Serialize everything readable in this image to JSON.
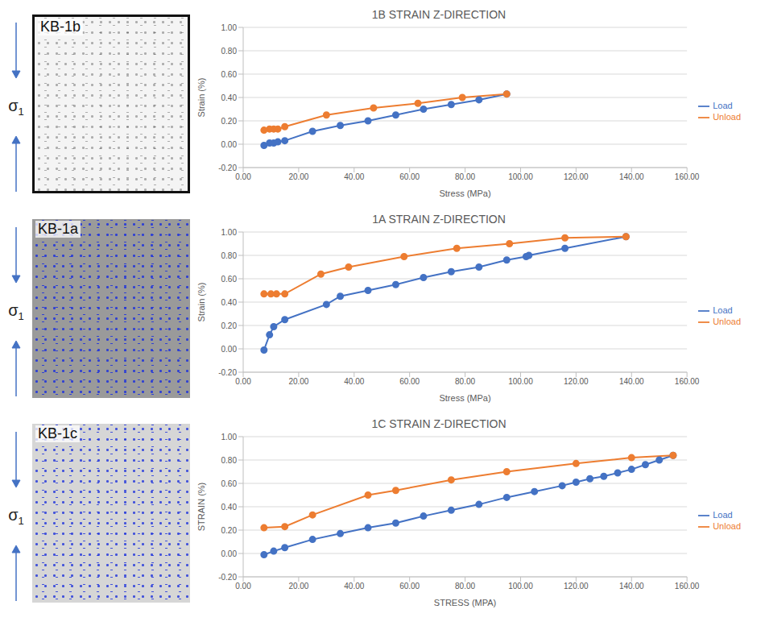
{
  "chart_data": [
    {
      "type": "line",
      "title": "1B STRAIN Z-DIRECTION",
      "x_label": "Stress (MPa)",
      "y_label": "Strain (%)",
      "annotations": [
        "KB-1b",
        "σ1"
      ],
      "xlim": [
        0,
        160
      ],
      "xticks": [
        {
          "value": 0,
          "label": "0.00"
        },
        {
          "value": 20,
          "label": "20.00"
        },
        {
          "value": 40,
          "label": "40.00"
        },
        {
          "value": 60,
          "label": "60.00"
        },
        {
          "value": 80,
          "label": "80.00"
        },
        {
          "value": 100,
          "label": "100.00"
        },
        {
          "value": 120,
          "label": "120.00"
        },
        {
          "value": 140,
          "label": "140.00"
        },
        {
          "value": 160,
          "label": "160.00"
        }
      ],
      "ylim": [
        -0.2,
        1.0
      ],
      "yticks": [
        {
          "value": -0.2,
          "label": "-0.20"
        },
        {
          "value": 0,
          "label": "0.00"
        },
        {
          "value": 0.2,
          "label": "0.20"
        },
        {
          "value": 0.4,
          "label": "0.40"
        },
        {
          "value": 0.6,
          "label": "0.60"
        },
        {
          "value": 0.8,
          "label": "0.80"
        },
        {
          "value": 1.0,
          "label": "1.00"
        }
      ],
      "grid": true,
      "legend": "right",
      "marker": "circle",
      "series": [
        {
          "name": "Load",
          "color": "#4472c4",
          "x": [
            7.5,
            9.5,
            11,
            12.5,
            15,
            25,
            35,
            45,
            55,
            65,
            75,
            85,
            95
          ],
          "values": [
            -0.01,
            0.01,
            0.01,
            0.02,
            0.03,
            0.11,
            0.16,
            0.2,
            0.25,
            0.3,
            0.34,
            0.38,
            0.43
          ]
        },
        {
          "name": "Unload",
          "color": "#ed7d31",
          "x": [
            95,
            79,
            63,
            47,
            30,
            15,
            12.5,
            11,
            9.5,
            7.5
          ],
          "values": [
            0.43,
            0.4,
            0.35,
            0.31,
            0.25,
            0.15,
            0.13,
            0.13,
            0.13,
            0.12
          ]
        }
      ]
    },
    {
      "type": "line",
      "title": "1A STRAIN Z-DIRECTION",
      "x_label": "Stress (MPa)",
      "y_label": "Strain (%)",
      "annotations": [
        "KB-1a",
        "σ1"
      ],
      "xlim": [
        0,
        160
      ],
      "xticks": [
        {
          "value": 0,
          "label": "0.00"
        },
        {
          "value": 20,
          "label": "20.00"
        },
        {
          "value": 40,
          "label": "40.00"
        },
        {
          "value": 60,
          "label": "60.00"
        },
        {
          "value": 80,
          "label": "80.00"
        },
        {
          "value": 100,
          "label": "100.00"
        },
        {
          "value": 120,
          "label": "120.00"
        },
        {
          "value": 140,
          "label": "140.00"
        },
        {
          "value": 160,
          "label": "160.00"
        }
      ],
      "ylim": [
        -0.2,
        1.0
      ],
      "yticks": [
        {
          "value": -0.2,
          "label": "-0.20"
        },
        {
          "value": 0,
          "label": "0.00"
        },
        {
          "value": 0.2,
          "label": "0.20"
        },
        {
          "value": 0.4,
          "label": "0.40"
        },
        {
          "value": 0.6,
          "label": "0.60"
        },
        {
          "value": 0.8,
          "label": "0.80"
        },
        {
          "value": 1.0,
          "label": "1.00"
        }
      ],
      "grid": true,
      "legend": "right",
      "marker": "circle",
      "series": [
        {
          "name": "Load",
          "color": "#4472c4",
          "x": [
            7.5,
            9.5,
            11,
            15,
            30,
            35,
            45,
            55,
            65,
            75,
            85,
            95,
            102,
            103,
            116,
            138
          ],
          "values": [
            -0.01,
            0.12,
            0.19,
            0.25,
            0.38,
            0.45,
            0.5,
            0.55,
            0.61,
            0.66,
            0.7,
            0.76,
            0.79,
            0.8,
            0.86,
            0.96
          ]
        },
        {
          "name": "Unload",
          "color": "#ed7d31",
          "x": [
            138,
            116,
            96,
            77,
            58,
            38,
            28,
            15,
            12,
            10,
            7.5
          ],
          "values": [
            0.96,
            0.95,
            0.9,
            0.86,
            0.79,
            0.7,
            0.64,
            0.47,
            0.47,
            0.47,
            0.47
          ]
        }
      ]
    },
    {
      "type": "line",
      "title": "1C STRAIN Z-DIRECTION",
      "x_label": "STRESS (MPA)",
      "y_label": "STRAIN (%)",
      "annotations": [
        "KB-1c",
        "σ1"
      ],
      "xlim": [
        0,
        160
      ],
      "xticks": [
        {
          "value": 0,
          "label": "0.00"
        },
        {
          "value": 20,
          "label": "20.00"
        },
        {
          "value": 40,
          "label": "40.00"
        },
        {
          "value": 60,
          "label": "60.00"
        },
        {
          "value": 80,
          "label": "80.00"
        },
        {
          "value": 100,
          "label": "100.00"
        },
        {
          "value": 120,
          "label": "120.00"
        },
        {
          "value": 140,
          "label": "140.00"
        },
        {
          "value": 160,
          "label": "160.00"
        }
      ],
      "ylim": [
        -0.2,
        1.0
      ],
      "yticks": [
        {
          "value": -0.2,
          "label": "-0.20"
        },
        {
          "value": 0,
          "label": "0.00"
        },
        {
          "value": 0.2,
          "label": "0.20"
        },
        {
          "value": 0.4,
          "label": "0.40"
        },
        {
          "value": 0.6,
          "label": "0.60"
        },
        {
          "value": 0.8,
          "label": "0.80"
        },
        {
          "value": 1.0,
          "label": "1.00"
        }
      ],
      "grid": true,
      "legend": "right",
      "marker": "circle",
      "series": [
        {
          "name": "Load",
          "color": "#4472c4",
          "x": [
            7.5,
            11,
            15,
            25,
            35,
            45,
            55,
            65,
            75,
            85,
            95,
            105,
            115,
            120,
            125,
            130,
            135,
            140,
            145,
            150,
            155
          ],
          "values": [
            -0.01,
            0.02,
            0.05,
            0.12,
            0.17,
            0.22,
            0.26,
            0.32,
            0.37,
            0.42,
            0.48,
            0.53,
            0.58,
            0.61,
            0.64,
            0.66,
            0.69,
            0.72,
            0.76,
            0.8,
            0.84
          ]
        },
        {
          "name": "Unload",
          "color": "#ed7d31",
          "x": [
            155,
            140,
            120,
            95,
            75,
            55,
            45,
            25,
            15,
            7.5
          ],
          "values": [
            0.84,
            0.82,
            0.77,
            0.7,
            0.63,
            0.54,
            0.5,
            0.33,
            0.23,
            0.22
          ]
        }
      ]
    }
  ]
}
